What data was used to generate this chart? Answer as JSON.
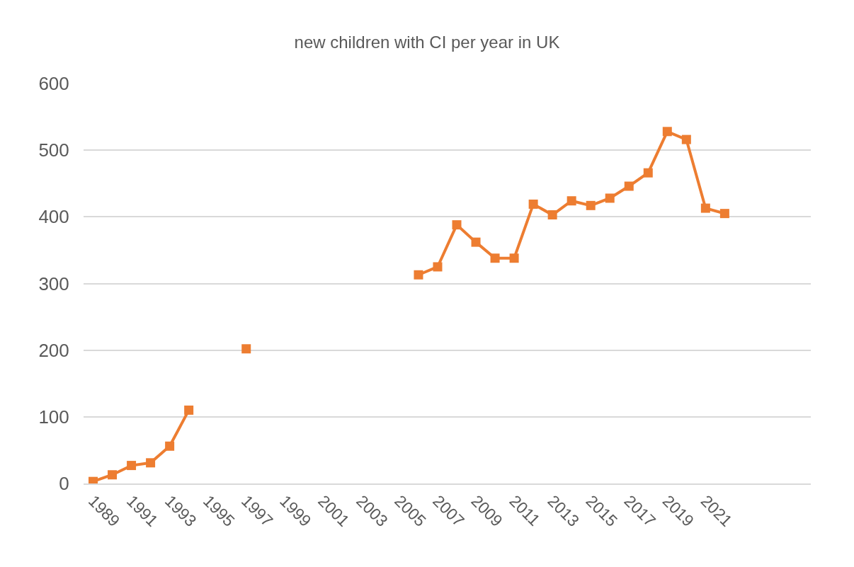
{
  "chart_data": {
    "type": "line",
    "title": "new children with CI per year in UK",
    "categories": [
      "1989",
      null,
      "1991",
      null,
      "1993",
      null,
      "1995",
      null,
      "1997",
      null,
      "1999",
      null,
      "2001",
      null,
      "2003",
      null,
      "2005",
      null,
      "2007",
      null,
      "2009",
      null,
      "2011",
      null,
      "2013",
      null,
      "2015",
      null,
      "2017",
      null,
      "2019",
      null,
      "2021",
      null,
      null,
      null,
      null,
      null
    ],
    "series": [
      {
        "color": "#ed7d31",
        "values": [
          3,
          13,
          27,
          31,
          56,
          110,
          null,
          null,
          202,
          null,
          null,
          null,
          null,
          null,
          null,
          null,
          null,
          313,
          325,
          388,
          362,
          338,
          338,
          419,
          403,
          424,
          417,
          428,
          446,
          466,
          528,
          516,
          413,
          405,
          null,
          null,
          null,
          null
        ]
      }
    ],
    "ylim": [
      0,
      600
    ],
    "yticks": [
      0,
      100,
      200,
      300,
      400,
      500,
      600
    ],
    "grid": "y",
    "marker": "square",
    "line_style": "solid"
  }
}
